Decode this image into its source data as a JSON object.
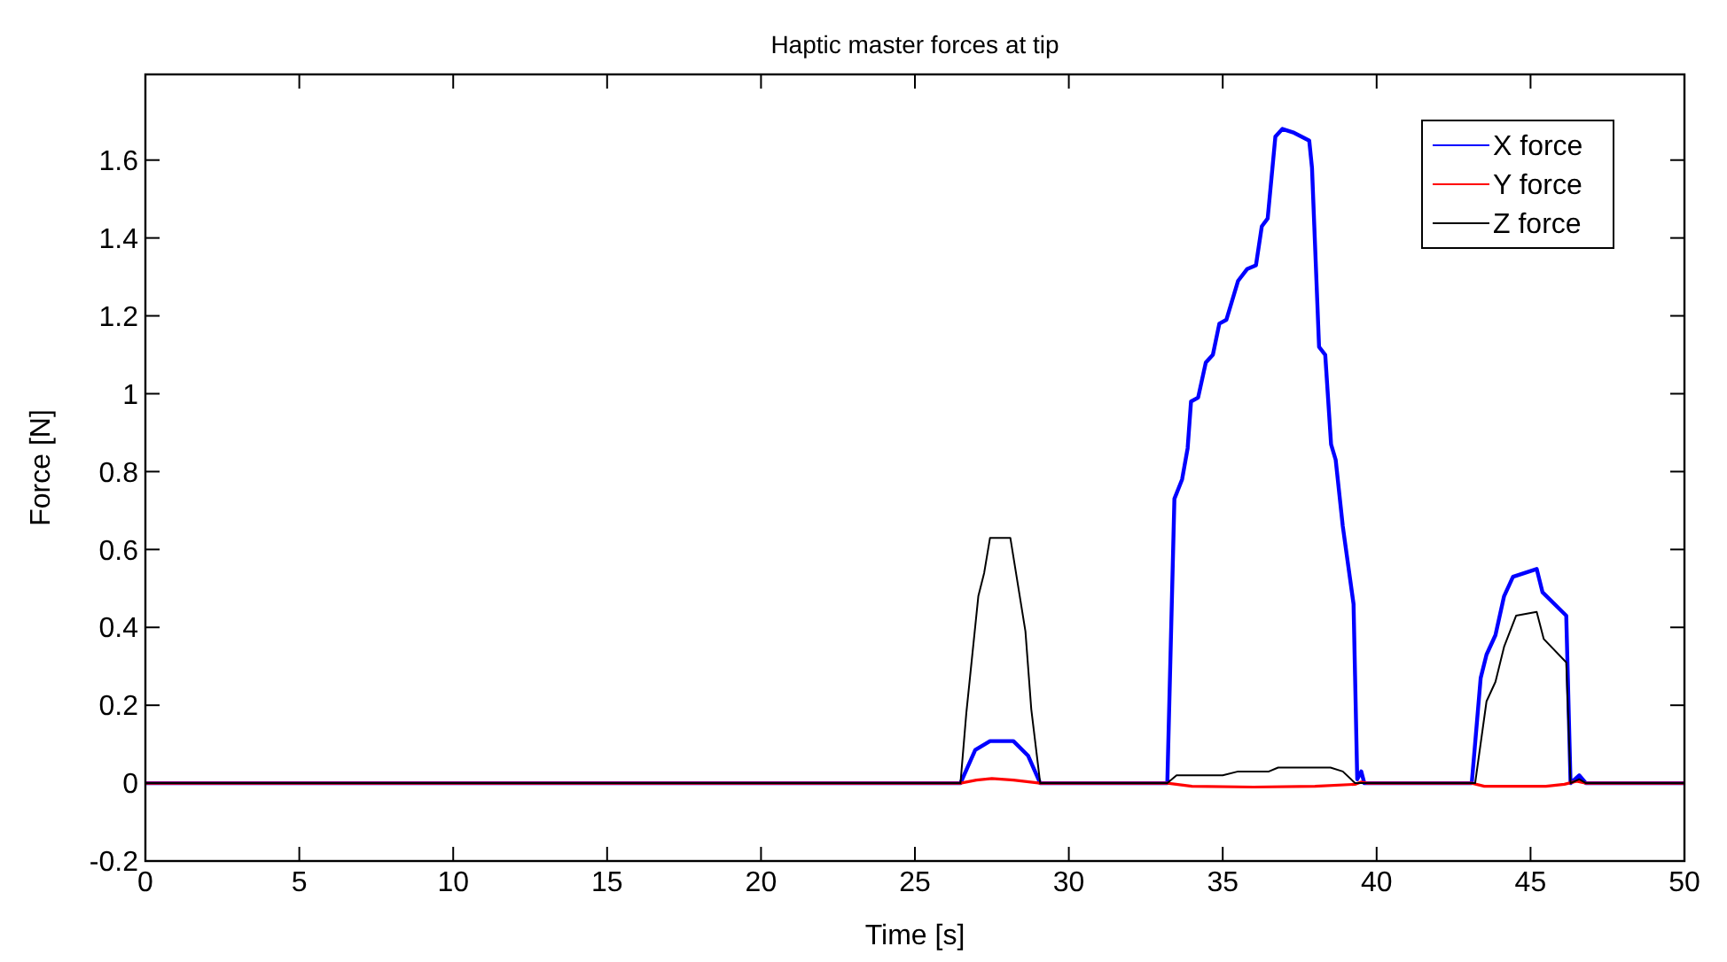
{
  "chart_data": {
    "type": "line",
    "title": "Haptic master forces at tip",
    "xlabel": "Time [s]",
    "ylabel": "Force [N]",
    "xlim": [
      0,
      50
    ],
    "ylim": [
      -0.2,
      1.82
    ],
    "xticks": [
      0,
      5,
      10,
      15,
      20,
      25,
      30,
      35,
      40,
      45,
      50
    ],
    "yticks": [
      -0.2,
      0,
      0.2,
      0.4,
      0.6,
      0.8,
      1,
      1.2,
      1.4,
      1.6
    ],
    "grid": false,
    "legend": "top right",
    "marker": "none",
    "line_style": "solid",
    "series": [
      {
        "name": "X force",
        "color": "#0000ff",
        "x": [
          0,
          26.48,
          26.96,
          27.44,
          28.2,
          28.68,
          29.07,
          33.2,
          33.43,
          33.68,
          33.86,
          33.97,
          34.2,
          34.45,
          34.68,
          34.89,
          35.12,
          35.5,
          35.79,
          36.08,
          36.27,
          36.46,
          36.71,
          36.94,
          37.32,
          37.81,
          37.9,
          38.13,
          38.33,
          38.52,
          38.67,
          38.9,
          39.25,
          39.37,
          39.5,
          39.6,
          43.09,
          43.38,
          43.57,
          43.86,
          44.14,
          44.43,
          45.2,
          45.39,
          46.16,
          46.3,
          46.58,
          46.8,
          50
        ],
        "values": [
          0,
          0,
          0.085,
          0.108,
          0.108,
          0.07,
          0,
          0,
          0.73,
          0.78,
          0.86,
          0.98,
          0.99,
          1.08,
          1.1,
          1.18,
          1.19,
          1.29,
          1.32,
          1.33,
          1.43,
          1.45,
          1.66,
          1.68,
          1.67,
          1.65,
          1.58,
          1.12,
          1.1,
          0.87,
          0.83,
          0.66,
          0.46,
          0.01,
          0.03,
          0,
          0,
          0.27,
          0.33,
          0.38,
          0.48,
          0.53,
          0.55,
          0.49,
          0.43,
          0,
          0.02,
          0,
          0
        ]
      },
      {
        "name": "Y force",
        "color": "#ff0000",
        "x": [
          0,
          26.48,
          27,
          27.5,
          28.2,
          29.07,
          33.2,
          34,
          36,
          38,
          39.3,
          39.5,
          39.7,
          43.09,
          43.5,
          45.5,
          46.1,
          46.5,
          46.8,
          50
        ],
        "values": [
          0,
          0,
          0.008,
          0.012,
          0.008,
          0,
          0,
          -0.008,
          -0.01,
          -0.008,
          -0.003,
          0.003,
          0,
          0,
          -0.008,
          -0.008,
          -0.003,
          0.005,
          0,
          0
        ]
      },
      {
        "name": "Z force",
        "color": "#000000",
        "x": [
          0,
          26.48,
          26.67,
          27.06,
          27.25,
          27.44,
          28.1,
          28.59,
          28.78,
          29.07,
          33.2,
          33.5,
          35,
          35.5,
          36.5,
          36.8,
          38.5,
          38.9,
          39.3,
          43.2,
          43.57,
          43.86,
          44.14,
          44.53,
          45.2,
          45.43,
          46.16,
          46.3,
          46.58,
          46.8,
          50
        ],
        "values": [
          0,
          0,
          0.18,
          0.48,
          0.54,
          0.63,
          0.63,
          0.39,
          0.19,
          0,
          0,
          0.02,
          0.02,
          0.03,
          0.03,
          0.04,
          0.04,
          0.03,
          0,
          0,
          0.21,
          0.26,
          0.35,
          0.43,
          0.44,
          0.37,
          0.31,
          0,
          0.01,
          0,
          0
        ]
      }
    ]
  }
}
